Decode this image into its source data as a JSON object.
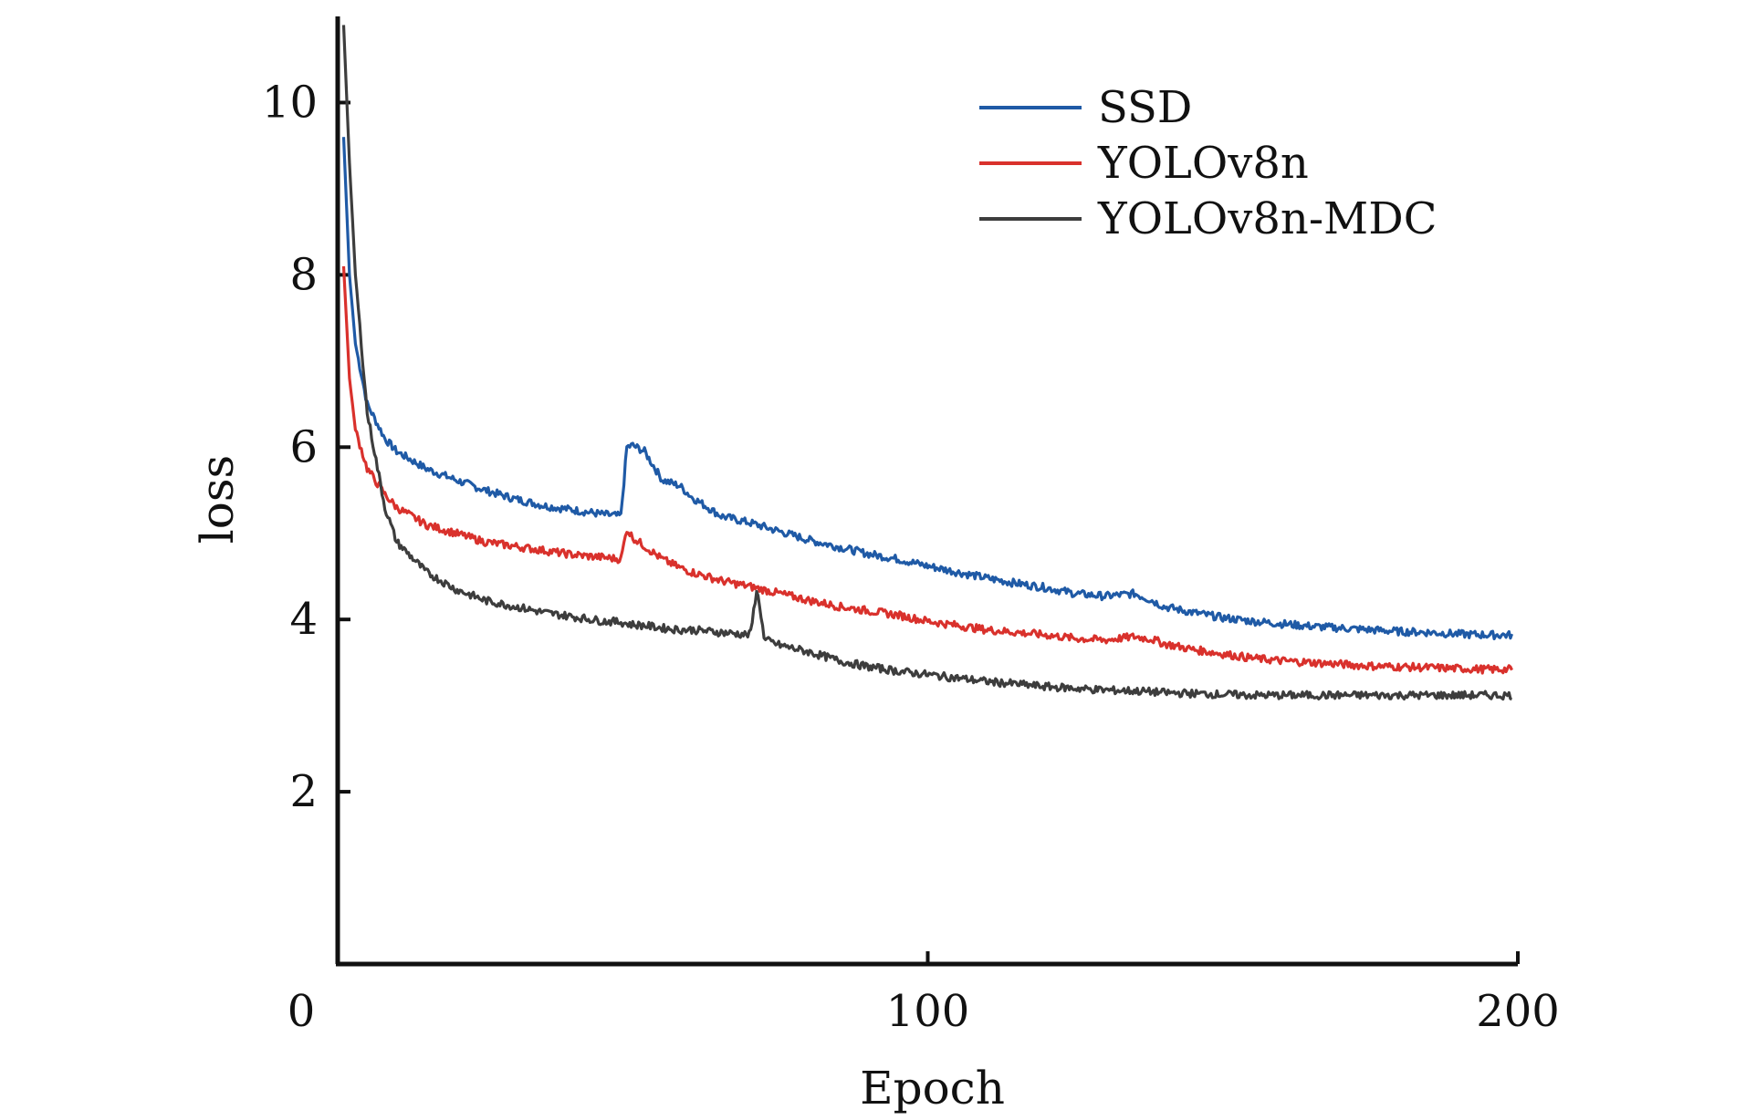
{
  "chart_data": {
    "type": "line",
    "xlabel": "Epoch",
    "ylabel": "loss",
    "xlim": [
      0,
      200
    ],
    "ylim": [
      0,
      11
    ],
    "x_ticks": [
      0,
      100,
      200
    ],
    "y_ticks": [
      2,
      4,
      6,
      8,
      10
    ],
    "grid": false,
    "legend_position": "top-right",
    "x": [
      1,
      2,
      3,
      5,
      8,
      10,
      15,
      20,
      25,
      30,
      35,
      40,
      45,
      48,
      49,
      50,
      52,
      55,
      58,
      60,
      65,
      70,
      75,
      80,
      85,
      90,
      95,
      100,
      105,
      110,
      115,
      120,
      125,
      130,
      135,
      138,
      140,
      145,
      150,
      155,
      160,
      165,
      170,
      175,
      180,
      185,
      190,
      195,
      199
    ],
    "series": [
      {
        "name": "SSD",
        "color": "#1f5aa6",
        "values": [
          9.6,
          8.0,
          7.2,
          6.5,
          6.1,
          5.95,
          5.75,
          5.62,
          5.5,
          5.4,
          5.32,
          5.27,
          5.22,
          5.2,
          6.0,
          6.02,
          5.95,
          5.62,
          5.55,
          5.42,
          5.2,
          5.12,
          5.02,
          4.92,
          4.84,
          4.76,
          4.7,
          4.62,
          4.55,
          4.48,
          4.42,
          4.37,
          4.3,
          4.27,
          4.3,
          4.22,
          4.15,
          4.08,
          4.02,
          3.98,
          3.95,
          3.92,
          3.9,
          3.88,
          3.86,
          3.85,
          3.83,
          3.82,
          3.82
        ]
      },
      {
        "name": "YOLOv8n",
        "color": "#d9312c",
        "values": [
          8.1,
          6.8,
          6.2,
          5.75,
          5.45,
          5.3,
          5.1,
          5.0,
          4.9,
          4.85,
          4.8,
          4.75,
          4.72,
          4.7,
          5.05,
          4.95,
          4.85,
          4.7,
          4.6,
          4.55,
          4.45,
          4.38,
          4.3,
          4.22,
          4.15,
          4.1,
          4.05,
          3.98,
          3.93,
          3.88,
          3.85,
          3.82,
          3.78,
          3.76,
          3.8,
          3.77,
          3.72,
          3.65,
          3.6,
          3.55,
          3.52,
          3.5,
          3.48,
          3.46,
          3.45,
          3.44,
          3.43,
          3.42,
          3.42
        ]
      },
      {
        "name": "YOLOv8n-MDC",
        "color": "#3d3d3d",
        "values": [
          10.9,
          9.3,
          8.0,
          6.4,
          5.3,
          4.9,
          4.55,
          4.35,
          4.22,
          4.15,
          4.08,
          4.03,
          3.98,
          3.97,
          3.95,
          3.94,
          3.93,
          3.9,
          3.88,
          3.88,
          3.85,
          3.82,
          3.7,
          3.62,
          3.52,
          3.45,
          3.4,
          3.36,
          3.32,
          3.28,
          3.25,
          3.22,
          3.2,
          3.18,
          3.17,
          3.16,
          3.15,
          3.14,
          3.13,
          3.12,
          3.12,
          3.12,
          3.12,
          3.12,
          3.12,
          3.12,
          3.12,
          3.12,
          3.12
        ]
      }
    ],
    "spikes": [
      {
        "series": 2,
        "points": [
          [
            70,
            3.85
          ],
          [
            71,
            4.35
          ],
          [
            72,
            3.95
          ]
        ]
      }
    ]
  }
}
